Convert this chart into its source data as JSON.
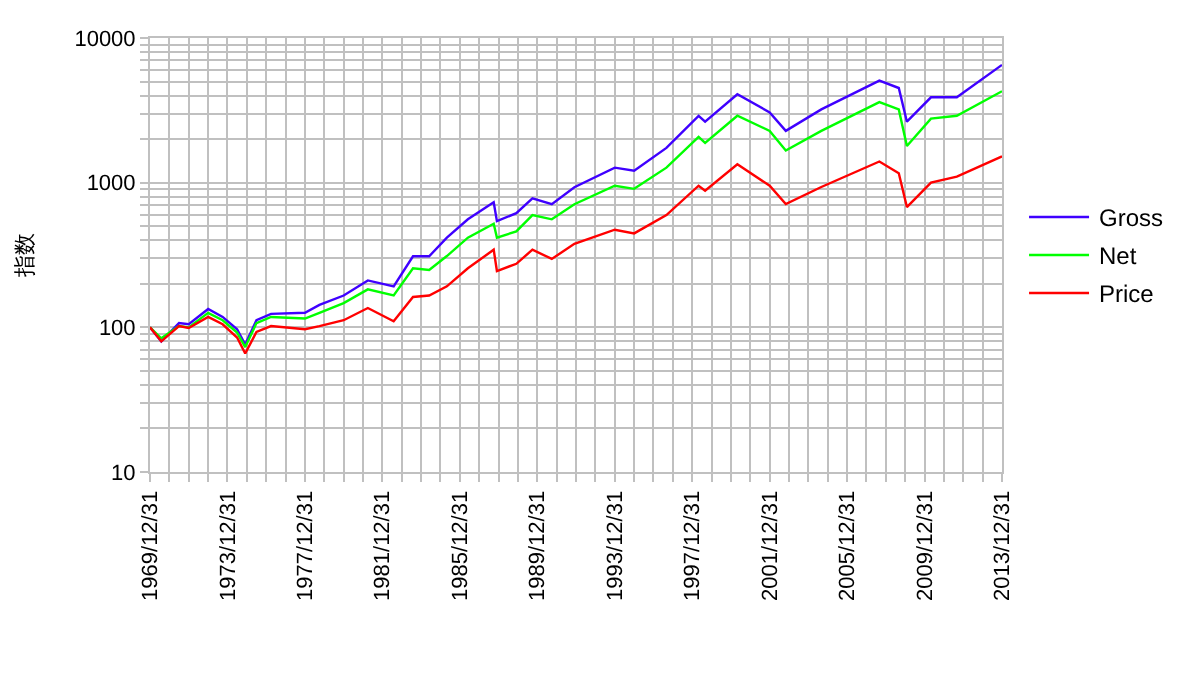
{
  "chart_data": {
    "type": "line",
    "ylabel": "指数",
    "log": "y",
    "grid": true,
    "legend": "right",
    "marker": "none",
    "line_style": "solid",
    "x": [
      "1969-12-31",
      "1970-08",
      "1971-07",
      "1972-01",
      "1973-01",
      "1973-10",
      "1974-07",
      "1974-12",
      "1975-07",
      "1976-04",
      "1978-01",
      "1978-10",
      "1980-01",
      "1981-04",
      "1982-08",
      "1983-08",
      "1984-06",
      "1985-05",
      "1986-06",
      "1987-10",
      "1987-12",
      "1988-12",
      "1989-10",
      "1990-10",
      "1991-12",
      "1994-01",
      "1995-01",
      "1996-09",
      "1998-05",
      "1998-09",
      "2000-05",
      "2002-01",
      "2002-11",
      "2004-09",
      "2007-09",
      "2008-09",
      "2009-02",
      "2010-05",
      "2011-09",
      "2013-12-31"
    ],
    "series": [
      {
        "name": "Gross",
        "color": "#3f00ff",
        "values": [
          100,
          80,
          107,
          105,
          134,
          118,
          97,
          76,
          112,
          124,
          126,
          143,
          166,
          211,
          192,
          310,
          310,
          417,
          558,
          733,
          542,
          615,
          780,
          710,
          930,
          1270,
          1210,
          1740,
          2900,
          2640,
          4080,
          3060,
          2280,
          3210,
          5070,
          4510,
          2640,
          3890,
          3890,
          6520
        ]
      },
      {
        "name": "Net",
        "color": "#00ff00",
        "values": [
          100,
          84,
          102,
          100,
          126,
          112,
          92,
          73,
          107,
          118,
          115,
          126,
          147,
          183,
          166,
          256,
          249,
          311,
          417,
          520,
          417,
          460,
          596,
          558,
          710,
          953,
          906,
          1270,
          2070,
          1880,
          2900,
          2280,
          1670,
          2280,
          3600,
          3210,
          1790,
          2770,
          2900,
          4290
        ]
      },
      {
        "name": "Price",
        "color": "#ff0000",
        "values": [
          100,
          80,
          102,
          99,
          118,
          105,
          85,
          66,
          93,
          102,
          97,
          102,
          112,
          136,
          110,
          162,
          166,
          192,
          256,
          344,
          245,
          275,
          344,
          297,
          378,
          473,
          446,
          597,
          953,
          881,
          1340,
          953,
          711,
          933,
          1400,
          1160,
          678,
          1000,
          1100,
          1520
        ]
      }
    ],
    "xlim": [
      "1969-12-31",
      "2013-12-31"
    ],
    "xticks": [
      {
        "value": "1969-12-31",
        "label": "1969/12/31"
      },
      {
        "value": "1970-12-31",
        "label": null
      },
      {
        "value": "1971-12-31",
        "label": null
      },
      {
        "value": "1972-12-31",
        "label": null
      },
      {
        "value": "1973-12-31",
        "label": "1973/12/31"
      },
      {
        "value": "1974-12-31",
        "label": null
      },
      {
        "value": "1975-12-31",
        "label": null
      },
      {
        "value": "1976-12-31",
        "label": null
      },
      {
        "value": "1977-12-31",
        "label": "1977/12/31"
      },
      {
        "value": "1978-12-31",
        "label": null
      },
      {
        "value": "1979-12-31",
        "label": null
      },
      {
        "value": "1980-12-31",
        "label": null
      },
      {
        "value": "1981-12-31",
        "label": "1981/12/31"
      },
      {
        "value": "1982-12-31",
        "label": null
      },
      {
        "value": "1983-12-31",
        "label": null
      },
      {
        "value": "1984-12-31",
        "label": null
      },
      {
        "value": "1985-12-31",
        "label": "1985/12/31"
      },
      {
        "value": "1986-12-31",
        "label": null
      },
      {
        "value": "1987-12-31",
        "label": null
      },
      {
        "value": "1988-12-31",
        "label": null
      },
      {
        "value": "1989-12-31",
        "label": "1989/12/31"
      },
      {
        "value": "1990-12-31",
        "label": null
      },
      {
        "value": "1991-12-31",
        "label": null
      },
      {
        "value": "1992-12-31",
        "label": null
      },
      {
        "value": "1993-12-31",
        "label": "1993/12/31"
      },
      {
        "value": "1994-12-31",
        "label": null
      },
      {
        "value": "1995-12-31",
        "label": null
      },
      {
        "value": "1996-12-31",
        "label": null
      },
      {
        "value": "1997-12-31",
        "label": "1997/12/31"
      },
      {
        "value": "1998-12-31",
        "label": null
      },
      {
        "value": "1999-12-31",
        "label": null
      },
      {
        "value": "2000-12-31",
        "label": null
      },
      {
        "value": "2001-12-31",
        "label": "2001/12/31"
      },
      {
        "value": "2002-12-31",
        "label": null
      },
      {
        "value": "2003-12-31",
        "label": null
      },
      {
        "value": "2004-12-31",
        "label": null
      },
      {
        "value": "2005-12-31",
        "label": "2005/12/31"
      },
      {
        "value": "2006-12-31",
        "label": null
      },
      {
        "value": "2007-12-31",
        "label": null
      },
      {
        "value": "2008-12-31",
        "label": null
      },
      {
        "value": "2009-12-31",
        "label": "2009/12/31"
      },
      {
        "value": "2010-12-31",
        "label": null
      },
      {
        "value": "2011-12-31",
        "label": null
      },
      {
        "value": "2012-12-31",
        "label": null
      },
      {
        "value": "2013-12-31",
        "label": "2013/12/31"
      }
    ],
    "ylim": [
      10,
      10000
    ],
    "yticks": [
      10,
      {
        "value": 20,
        "label": null
      },
      {
        "value": 30,
        "label": null
      },
      {
        "value": 40,
        "label": null
      },
      {
        "value": 50,
        "label": null
      },
      {
        "value": 60,
        "label": null
      },
      {
        "value": 70,
        "label": null
      },
      {
        "value": 80,
        "label": null
      },
      {
        "value": 90,
        "label": null
      },
      100,
      {
        "value": 200,
        "label": null
      },
      {
        "value": 300,
        "label": null
      },
      {
        "value": 400,
        "label": null
      },
      {
        "value": 500,
        "label": null
      },
      {
        "value": 600,
        "label": null
      },
      {
        "value": 700,
        "label": null
      },
      {
        "value": 800,
        "label": null
      },
      {
        "value": 900,
        "label": null
      },
      1000,
      {
        "value": 2000,
        "label": null
      },
      {
        "value": 3000,
        "label": null
      },
      {
        "value": 4000,
        "label": null
      },
      {
        "value": 5000,
        "label": null
      },
      {
        "value": 6000,
        "label": null
      },
      {
        "value": 7000,
        "label": null
      },
      {
        "value": 8000,
        "label": null
      },
      {
        "value": 9000,
        "label": null
      },
      10000
    ]
  }
}
